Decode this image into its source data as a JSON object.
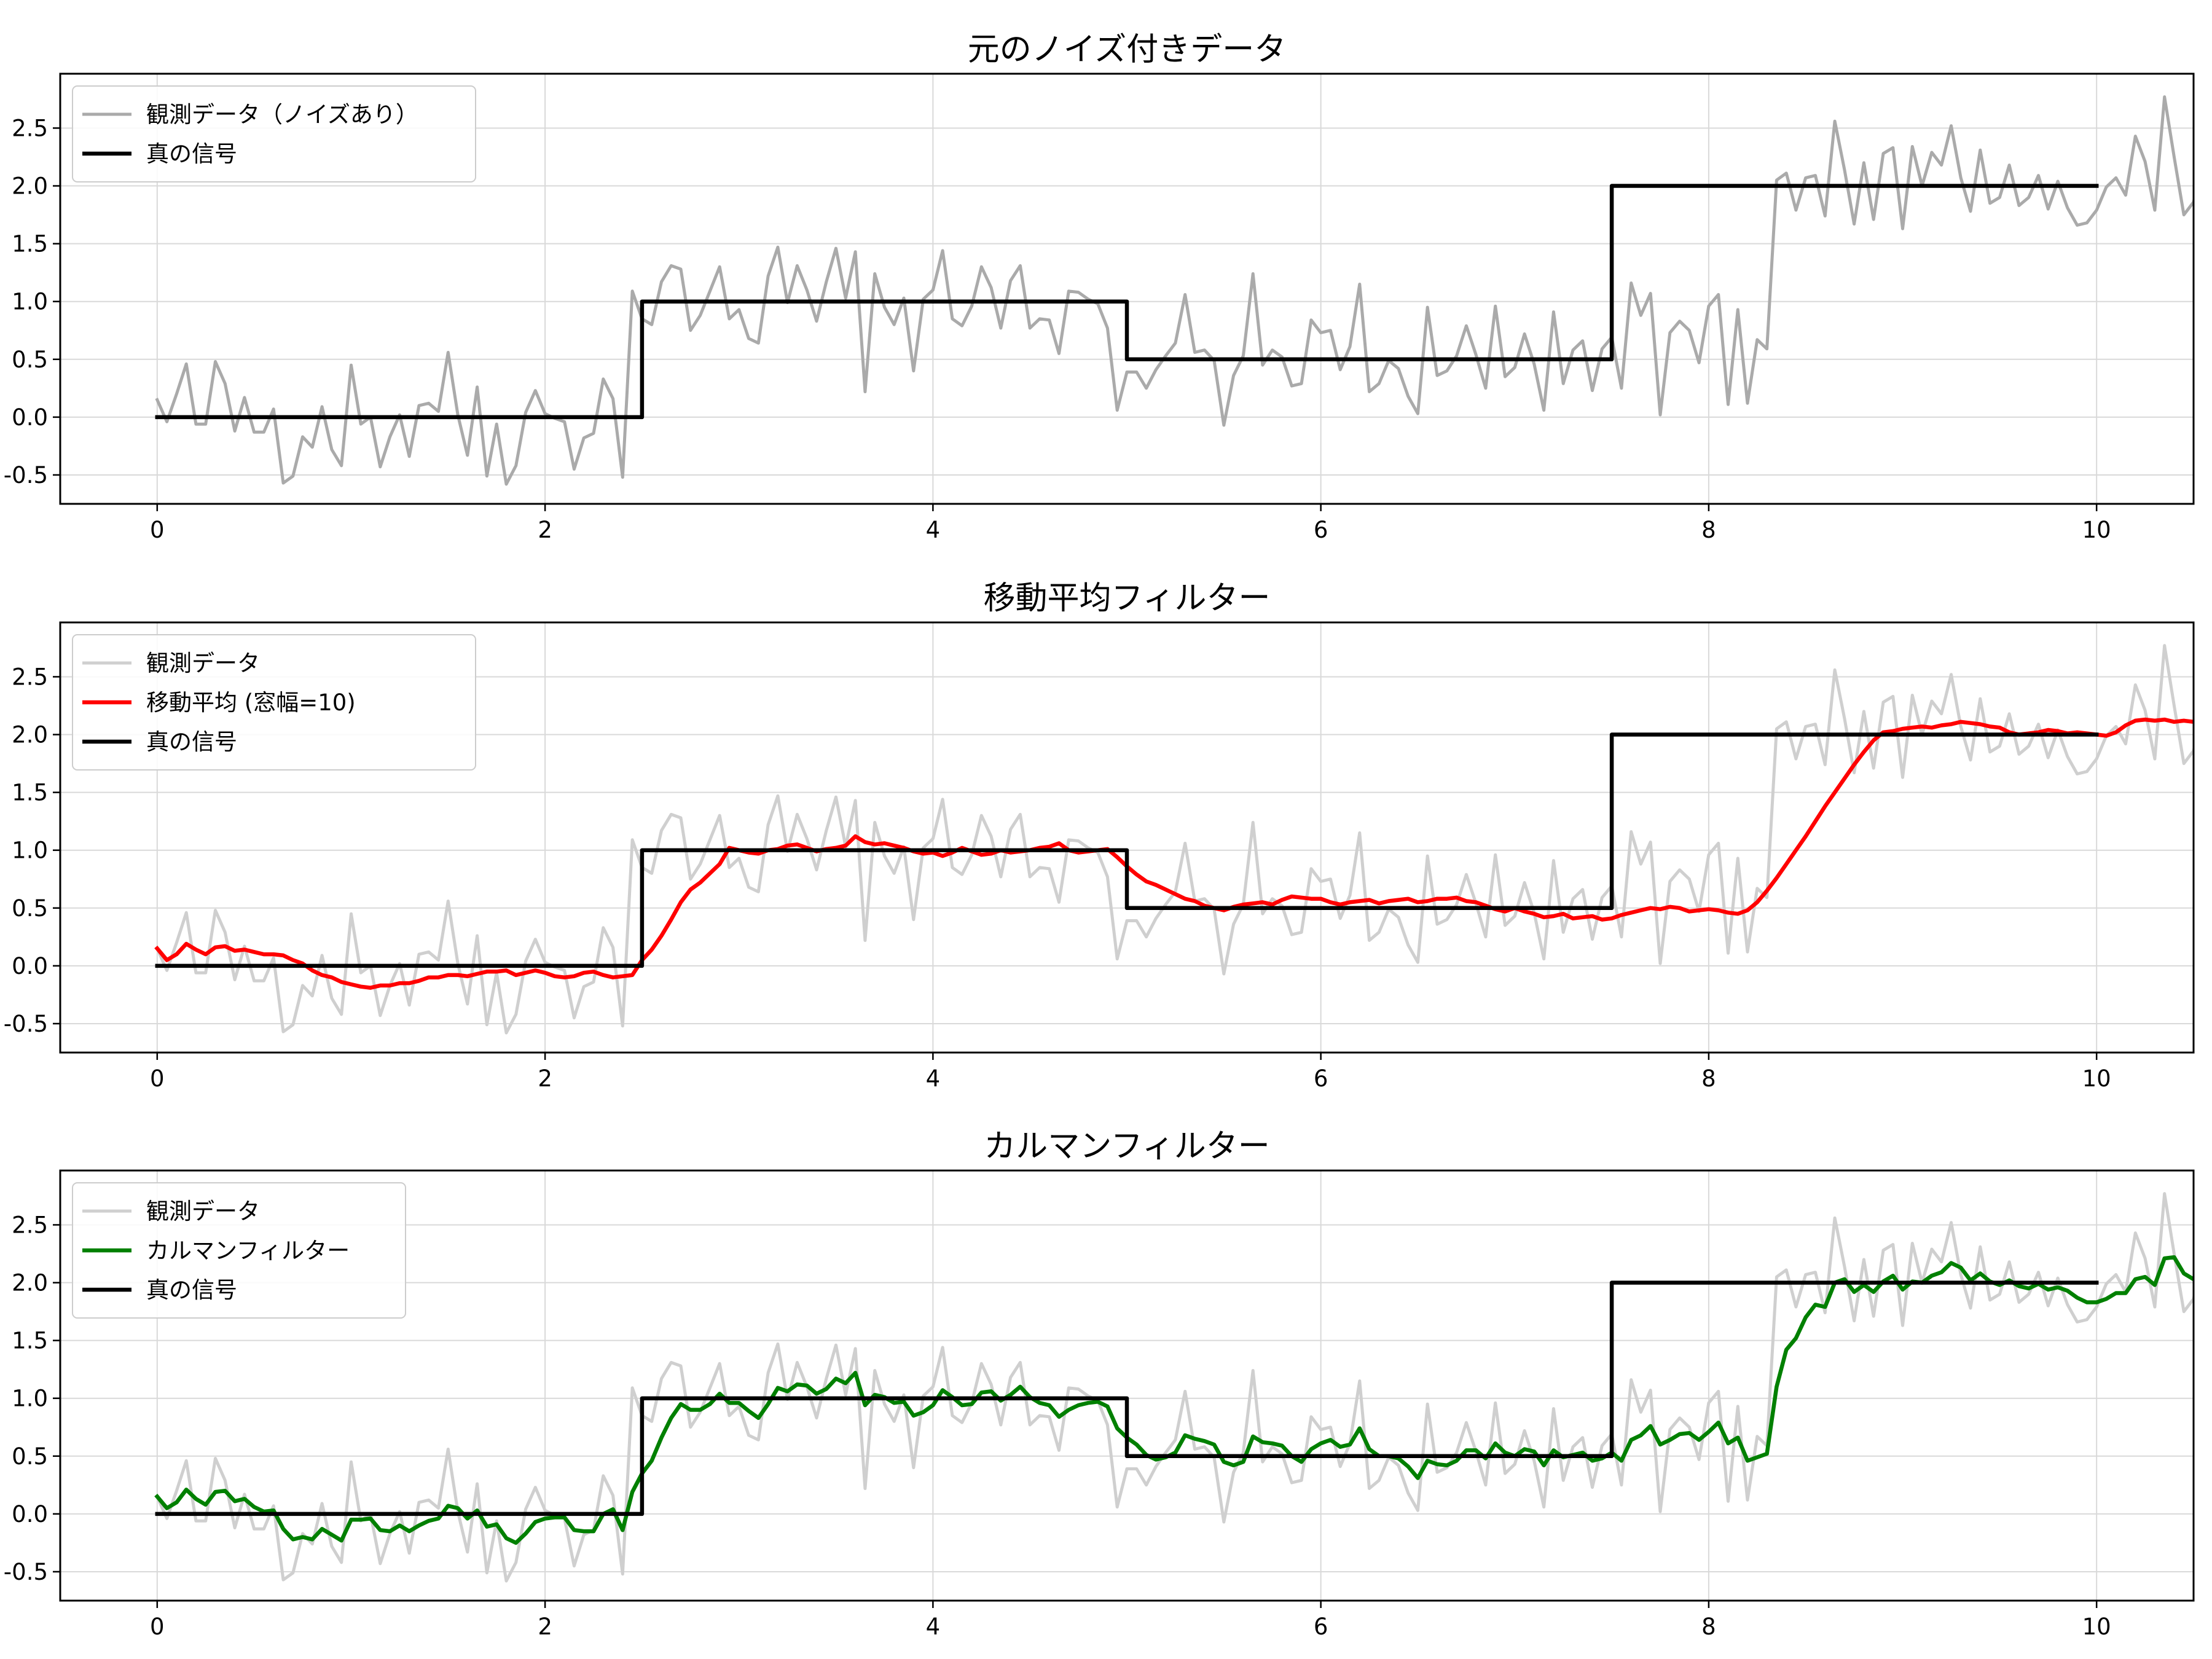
{
  "chart_data": [
    {
      "type": "line",
      "title": "元のノイズ付きデータ",
      "xlabel": "",
      "ylabel": "",
      "xlim": [
        -0.5,
        10.5
      ],
      "ylim": [
        -0.75,
        2.97
      ],
      "xticks": [
        0,
        2,
        4,
        6,
        8,
        10
      ],
      "yticks": [
        -0.5,
        0.0,
        0.5,
        1.0,
        1.5,
        2.0,
        2.5
      ],
      "grid": true,
      "legend_position": "upper-left",
      "series": [
        {
          "name": "観測データ（ノイズあり）",
          "color": "#aaaaaa",
          "role": "observed",
          "x_start": 0,
          "x_step": 0.05,
          "values": [
            0.15,
            -0.04,
            0.2,
            0.46,
            -0.06,
            -0.06,
            0.48,
            0.29,
            -0.12,
            0.17,
            -0.13,
            -0.13,
            0.07,
            -0.57,
            -0.51,
            -0.17,
            -0.26,
            0.09,
            -0.28,
            -0.42,
            0.45,
            -0.06,
            0.0,
            -0.43,
            -0.17,
            0.02,
            -0.34,
            0.1,
            0.12,
            0.05,
            0.56,
            0.02,
            -0.33,
            0.26,
            -0.51,
            -0.06,
            -0.58,
            -0.42,
            0.04,
            0.23,
            0.03,
            -0.01,
            -0.04,
            -0.45,
            -0.18,
            -0.14,
            0.33,
            0.16,
            -0.52,
            1.09,
            0.85,
            0.8,
            1.17,
            1.31,
            1.28,
            0.75,
            0.88,
            1.09,
            1.3,
            0.85,
            0.93,
            0.68,
            0.64,
            1.22,
            1.47,
            0.99,
            1.31,
            1.1,
            0.83,
            1.17,
            1.46,
            1.03,
            1.43,
            0.22,
            1.24,
            0.95,
            0.8,
            1.03,
            0.4,
            1.02,
            1.1,
            1.44,
            0.85,
            0.79,
            0.96,
            1.3,
            1.12,
            0.77,
            1.18,
            1.31,
            0.77,
            0.85,
            0.84,
            0.55,
            1.09,
            1.08,
            1.02,
            0.98,
            0.77,
            0.06,
            0.39,
            0.39,
            0.25,
            0.41,
            0.53,
            0.64,
            1.06,
            0.56,
            0.58,
            0.49,
            -0.07,
            0.36,
            0.53,
            1.24,
            0.45,
            0.58,
            0.52,
            0.27,
            0.29,
            0.84,
            0.73,
            0.75,
            0.41,
            0.61,
            1.15,
            0.22,
            0.29,
            0.49,
            0.42,
            0.18,
            0.03,
            0.95,
            0.36,
            0.4,
            0.53,
            0.79,
            0.54,
            0.25,
            0.96,
            0.35,
            0.43,
            0.72,
            0.46,
            0.06,
            0.91,
            0.29,
            0.58,
            0.66,
            0.23,
            0.59,
            0.69,
            0.25,
            1.16,
            0.88,
            1.07,
            0.02,
            0.73,
            0.83,
            0.75,
            0.47,
            0.96,
            1.06,
            0.11,
            0.93,
            0.12,
            0.67,
            0.59,
            2.05,
            2.11,
            1.79,
            2.07,
            2.09,
            1.74,
            2.56,
            2.14,
            1.67,
            2.2,
            1.71,
            2.28,
            2.33,
            1.63,
            2.34,
            2.0,
            2.29,
            2.18,
            2.52,
            2.07,
            1.78,
            2.31,
            1.85,
            1.9,
            2.18,
            1.83,
            1.9,
            2.09,
            1.8,
            2.04,
            1.81,
            1.66,
            1.68,
            1.79,
            1.99,
            2.07,
            1.92,
            2.43,
            2.21,
            1.79,
            2.77,
            2.25,
            1.75,
            1.86,
            2.23,
            2.02,
            1.71,
            1.83,
            2.0,
            2.19,
            2.16,
            1.93,
            2.18,
            2.27,
            1.81,
            1.65
          ]
        },
        {
          "name": "真の信号",
          "color": "#000000",
          "role": "truth",
          "step_x": [
            0,
            2.5,
            2.5,
            5.0,
            5.0,
            7.5,
            7.5,
            10.0
          ],
          "step_y": [
            0,
            0,
            1,
            1,
            0.5,
            0.5,
            2,
            2
          ]
        }
      ]
    },
    {
      "type": "line",
      "title": "移動平均フィルター",
      "xlabel": "",
      "ylabel": "",
      "xlim": [
        -0.5,
        10.5
      ],
      "ylim": [
        -0.75,
        2.97
      ],
      "xticks": [
        0,
        2,
        4,
        6,
        8,
        10
      ],
      "yticks": [
        -0.5,
        0.0,
        0.5,
        1.0,
        1.5,
        2.0,
        2.5
      ],
      "grid": true,
      "legend_position": "upper-left",
      "series": [
        {
          "name": "観測データ",
          "color": "#cfcfcf",
          "role": "observed-ref"
        },
        {
          "name": "移動平均 (窓幅=10)",
          "color": "#ff0000",
          "role": "filtered",
          "x_start": 0,
          "x_step": 0.05,
          "values": [
            0.15,
            0.05,
            0.1,
            0.19,
            0.14,
            0.1,
            0.16,
            0.17,
            0.13,
            0.14,
            0.12,
            0.1,
            0.1,
            0.09,
            0.05,
            0.02,
            -0.04,
            -0.08,
            -0.1,
            -0.14,
            -0.16,
            -0.18,
            -0.19,
            -0.17,
            -0.17,
            -0.15,
            -0.15,
            -0.13,
            -0.1,
            -0.1,
            -0.08,
            -0.08,
            -0.09,
            -0.07,
            -0.05,
            -0.05,
            -0.04,
            -0.08,
            -0.06,
            -0.04,
            -0.06,
            -0.09,
            -0.1,
            -0.09,
            -0.06,
            -0.05,
            -0.08,
            -0.1,
            -0.09,
            -0.08,
            0.05,
            0.14,
            0.26,
            0.4,
            0.55,
            0.66,
            0.72,
            0.8,
            0.88,
            1.02,
            1.0,
            0.98,
            0.97,
            1.0,
            1.01,
            1.04,
            1.05,
            1.02,
            0.99,
            1.01,
            1.02,
            1.04,
            1.12,
            1.07,
            1.05,
            1.06,
            1.04,
            1.02,
            0.99,
            0.97,
            0.98,
            0.95,
            0.98,
            1.02,
            0.99,
            0.96,
            0.97,
            1.0,
            0.98,
            0.99,
            1.0,
            1.02,
            1.03,
            1.06,
            1.0,
            0.98,
            0.99,
            1.0,
            1.01,
            0.94,
            0.86,
            0.79,
            0.73,
            0.7,
            0.66,
            0.62,
            0.58,
            0.56,
            0.52,
            0.5,
            0.48,
            0.51,
            0.53,
            0.54,
            0.55,
            0.53,
            0.57,
            0.6,
            0.59,
            0.58,
            0.58,
            0.55,
            0.53,
            0.55,
            0.56,
            0.57,
            0.54,
            0.56,
            0.57,
            0.58,
            0.55,
            0.56,
            0.58,
            0.58,
            0.59,
            0.56,
            0.55,
            0.52,
            0.49,
            0.47,
            0.5,
            0.47,
            0.45,
            0.42,
            0.43,
            0.45,
            0.41,
            0.42,
            0.43,
            0.4,
            0.41,
            0.44,
            0.46,
            0.48,
            0.5,
            0.49,
            0.51,
            0.5,
            0.47,
            0.48,
            0.49,
            0.48,
            0.46,
            0.45,
            0.48,
            0.55,
            0.65,
            0.76,
            0.88,
            1.0,
            1.12,
            1.25,
            1.38,
            1.5,
            1.62,
            1.74,
            1.85,
            1.95,
            2.02,
            2.03,
            2.05,
            2.06,
            2.07,
            2.06,
            2.08,
            2.09,
            2.11,
            2.1,
            2.09,
            2.07,
            2.06,
            2.02,
            2.0,
            2.01,
            2.02,
            2.04,
            2.03,
            2.01,
            2.02,
            2.01,
            2.0,
            1.99,
            2.02,
            2.08,
            2.12,
            2.13,
            2.12,
            2.13,
            2.11,
            2.12,
            2.11,
            2.1,
            2.05,
            2.03,
            2.04,
            1.97,
            1.93,
            1.97,
            1.95,
            1.96,
            1.93,
            1.92,
            1.93
          ]
        },
        {
          "name": "真の信号",
          "color": "#000000",
          "role": "truth",
          "step_x": [
            0,
            2.5,
            2.5,
            5.0,
            5.0,
            7.5,
            7.5,
            10.0
          ],
          "step_y": [
            0,
            0,
            1,
            1,
            0.5,
            0.5,
            2,
            2
          ]
        }
      ]
    },
    {
      "type": "line",
      "title": "カルマンフィルター",
      "xlabel": "",
      "ylabel": "",
      "xlim": [
        -0.5,
        10.5
      ],
      "ylim": [
        -0.75,
        2.97
      ],
      "xticks": [
        0,
        2,
        4,
        6,
        8,
        10
      ],
      "yticks": [
        -0.5,
        0.0,
        0.5,
        1.0,
        1.5,
        2.0,
        2.5
      ],
      "grid": true,
      "legend_position": "upper-left",
      "series": [
        {
          "name": "観測データ",
          "color": "#cfcfcf",
          "role": "observed-ref"
        },
        {
          "name": "カルマンフィルター",
          "color": "#008000",
          "role": "filtered",
          "x_start": 0,
          "x_step": 0.05,
          "values": [
            0.15,
            0.05,
            0.1,
            0.21,
            0.13,
            0.08,
            0.19,
            0.2,
            0.11,
            0.13,
            0.06,
            0.02,
            0.03,
            -0.13,
            -0.22,
            -0.2,
            -0.22,
            -0.13,
            -0.18,
            -0.23,
            -0.05,
            -0.05,
            -0.04,
            -0.14,
            -0.15,
            -0.1,
            -0.15,
            -0.1,
            -0.06,
            -0.04,
            0.07,
            0.05,
            -0.04,
            0.03,
            -0.11,
            -0.09,
            -0.21,
            -0.25,
            -0.17,
            -0.07,
            -0.04,
            -0.03,
            -0.03,
            -0.14,
            -0.15,
            -0.15,
            0.0,
            0.04,
            -0.14,
            0.19,
            0.35,
            0.46,
            0.66,
            0.83,
            0.95,
            0.9,
            0.9,
            0.95,
            1.04,
            0.96,
            0.96,
            0.89,
            0.83,
            0.95,
            1.09,
            1.06,
            1.12,
            1.11,
            1.04,
            1.08,
            1.17,
            1.13,
            1.22,
            0.94,
            1.03,
            1.01,
            0.96,
            0.97,
            0.85,
            0.88,
            0.94,
            1.07,
            1.01,
            0.94,
            0.95,
            1.05,
            1.06,
            0.98,
            1.03,
            1.1,
            1.01,
            0.96,
            0.94,
            0.84,
            0.9,
            0.94,
            0.96,
            0.97,
            0.93,
            0.74,
            0.66,
            0.6,
            0.51,
            0.47,
            0.49,
            0.53,
            0.68,
            0.65,
            0.63,
            0.6,
            0.45,
            0.42,
            0.45,
            0.67,
            0.62,
            0.61,
            0.59,
            0.5,
            0.45,
            0.56,
            0.61,
            0.64,
            0.58,
            0.6,
            0.74,
            0.56,
            0.5,
            0.5,
            0.48,
            0.41,
            0.31,
            0.46,
            0.43,
            0.42,
            0.46,
            0.55,
            0.55,
            0.48,
            0.61,
            0.53,
            0.5,
            0.56,
            0.54,
            0.42,
            0.55,
            0.49,
            0.51,
            0.53,
            0.46,
            0.48,
            0.53,
            0.46,
            0.64,
            0.68,
            0.76,
            0.6,
            0.64,
            0.69,
            0.7,
            0.64,
            0.71,
            0.79,
            0.61,
            0.66,
            0.46,
            0.49,
            0.52,
            1.1,
            1.42,
            1.52,
            1.7,
            1.81,
            1.79,
            2.0,
            2.03,
            1.92,
            1.98,
            1.92,
            2.01,
            2.06,
            1.94,
            2.01,
            2.0,
            2.06,
            2.09,
            2.17,
            2.13,
            2.02,
            2.08,
            2.01,
            1.98,
            2.02,
            1.97,
            1.95,
            1.99,
            1.94,
            1.96,
            1.93,
            1.87,
            1.83,
            1.83,
            1.86,
            1.91,
            1.91,
            2.03,
            2.05,
            1.98,
            2.21,
            2.22,
            2.08,
            2.03,
            2.08,
            2.06,
            1.97,
            1.93,
            1.95,
            2.0,
            2.03,
            2.0,
            2.04,
            2.09,
            2.0,
            1.9
          ]
        },
        {
          "name": "真の信号",
          "color": "#000000",
          "role": "truth",
          "step_x": [
            0,
            2.5,
            2.5,
            5.0,
            5.0,
            7.5,
            7.5,
            10.0
          ],
          "step_y": [
            0,
            0,
            1,
            1,
            0.5,
            0.5,
            2,
            2
          ]
        }
      ]
    }
  ]
}
